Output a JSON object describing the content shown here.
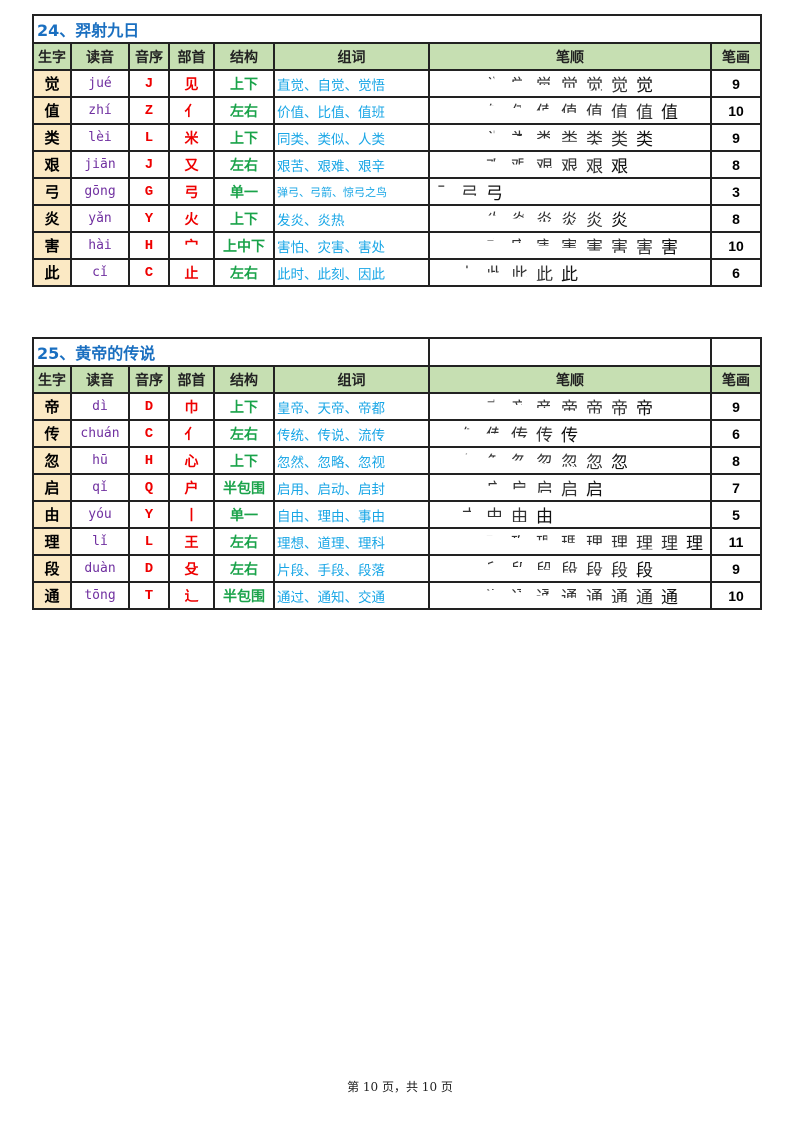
{
  "headers": [
    "生字",
    "读音",
    "音序",
    "部首",
    "结构",
    "组词",
    "笔顺",
    "笔画"
  ],
  "lessons": [
    {
      "title": "24、羿射九日",
      "rows": [
        {
          "char": "觉",
          "pinyin": "jué",
          "index": "J",
          "radical": "见",
          "structure": "上下",
          "words": "直觉、自觉、觉悟",
          "strokes": "9"
        },
        {
          "char": "值",
          "pinyin": "zhí",
          "index": "Z",
          "radical": "亻",
          "structure": "左右",
          "words": "价值、比值、值班",
          "strokes": "10"
        },
        {
          "char": "类",
          "pinyin": "lèi",
          "index": "L",
          "radical": "米",
          "structure": "上下",
          "words": "同类、类似、人类",
          "strokes": "9"
        },
        {
          "char": "艰",
          "pinyin": "jiān",
          "index": "J",
          "radical": "又",
          "structure": "左右",
          "words": "艰苦、艰难、艰辛",
          "strokes": "8"
        },
        {
          "char": "弓",
          "pinyin": "gōng",
          "index": "G",
          "radical": "弓",
          "structure": "单一",
          "words": "弹弓、弓箭、惊弓之鸟",
          "strokes": "3"
        },
        {
          "char": "炎",
          "pinyin": "yǎn",
          "index": "Y",
          "radical": "火",
          "structure": "上下",
          "words": "发炎、炎热",
          "strokes": "8"
        },
        {
          "char": "害",
          "pinyin": "hài",
          "index": "H",
          "radical": "宀",
          "structure": "上中下",
          "words": "害怕、灾害、害处",
          "strokes": "10"
        },
        {
          "char": "此",
          "pinyin": "cǐ",
          "index": "C",
          "radical": "止",
          "structure": "左右",
          "words": "此时、此刻、因此",
          "strokes": "6"
        }
      ]
    },
    {
      "title": "25、黄帝的传说",
      "rows": [
        {
          "char": "帝",
          "pinyin": "dì",
          "index": "D",
          "radical": "巾",
          "structure": "上下",
          "words": "皇帝、天帝、帝都",
          "strokes": "9"
        },
        {
          "char": "传",
          "pinyin": "chuán",
          "index": "C",
          "radical": "亻",
          "structure": "左右",
          "words": "传统、传说、流传",
          "strokes": "6"
        },
        {
          "char": "忽",
          "pinyin": "hū",
          "index": "H",
          "radical": "心",
          "structure": "上下",
          "words": "忽然、忽略、忽视",
          "strokes": "8"
        },
        {
          "char": "启",
          "pinyin": "qǐ",
          "index": "Q",
          "radical": "户",
          "structure": "半包围",
          "words": "启用、启动、启封",
          "strokes": "7"
        },
        {
          "char": "由",
          "pinyin": "yóu",
          "index": "Y",
          "radical": "丨",
          "structure": "单一",
          "words": "自由、理由、事由",
          "strokes": "5"
        },
        {
          "char": "理",
          "pinyin": "lǐ",
          "index": "L",
          "radical": "王",
          "structure": "左右",
          "words": "理想、道理、理科",
          "strokes": "11"
        },
        {
          "char": "段",
          "pinyin": "duàn",
          "index": "D",
          "radical": "殳",
          "structure": "左右",
          "words": "片段、手段、段落",
          "strokes": "9"
        },
        {
          "char": "通",
          "pinyin": "tōng",
          "index": "T",
          "radical": "辶",
          "structure": "半包围",
          "words": "通过、通知、交通",
          "strokes": "10"
        }
      ]
    }
  ],
  "footer": "第 10 页，共 10 页"
}
